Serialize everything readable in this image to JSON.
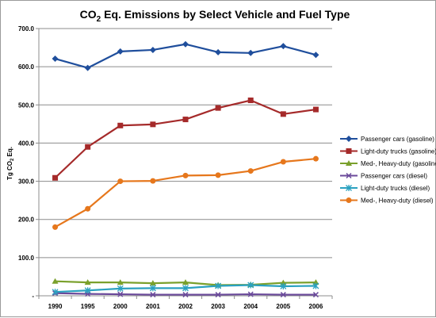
{
  "chart_data": {
    "type": "line",
    "title_main": "CO",
    "title_sub": "2",
    "title_rest": " Eq. Emissions by Select Vehicle and Fuel Type",
    "ylabel_main": "Tg CO",
    "ylabel_sub": "2",
    "ylabel_rest": " Eq.",
    "xlabel": "",
    "categories": [
      "1990",
      "1995",
      "2000",
      "2001",
      "2002",
      "2003",
      "2004",
      "2005",
      "2006"
    ],
    "ylim": [
      0,
      700
    ],
    "yticks": [
      "-",
      "100.0",
      "200.0",
      "300.0",
      "400.0",
      "500.0",
      "600.0",
      "700.0"
    ],
    "grid": "horizontal",
    "legend_position": "right",
    "series": [
      {
        "name": "Passenger cars (gasoline)",
        "color": "#1f4e9c",
        "marker": "diamond",
        "values": [
          621,
          597,
          640,
          644,
          659,
          638,
          636,
          654,
          631
        ]
      },
      {
        "name": "Light-duty trucks (gasoline)",
        "color": "#a52a2a",
        "marker": "square",
        "values": [
          309,
          390,
          446,
          449,
          462,
          492,
          512,
          476,
          488
        ]
      },
      {
        "name": "Med-, Heavy-duty (gasoline)",
        "color": "#7aa02c",
        "marker": "triangle",
        "values": [
          38,
          35,
          35,
          33,
          35,
          28,
          29,
          34,
          35
        ]
      },
      {
        "name": "Passenger cars (diesel)",
        "color": "#6b4a9b",
        "marker": "x",
        "values": [
          7,
          5,
          4,
          3,
          3,
          3,
          4,
          3,
          3
        ]
      },
      {
        "name": "Light-duty trucks (diesel)",
        "color": "#2aa1c0",
        "marker": "star",
        "values": [
          10,
          14,
          19,
          20,
          20,
          26,
          28,
          25,
          26
        ]
      },
      {
        "name": "Med-, Heavy-duty (diesel)",
        "color": "#e6771c",
        "marker": "circle",
        "values": [
          180,
          228,
          300,
          301,
          315,
          316,
          327,
          351,
          359
        ]
      }
    ]
  }
}
